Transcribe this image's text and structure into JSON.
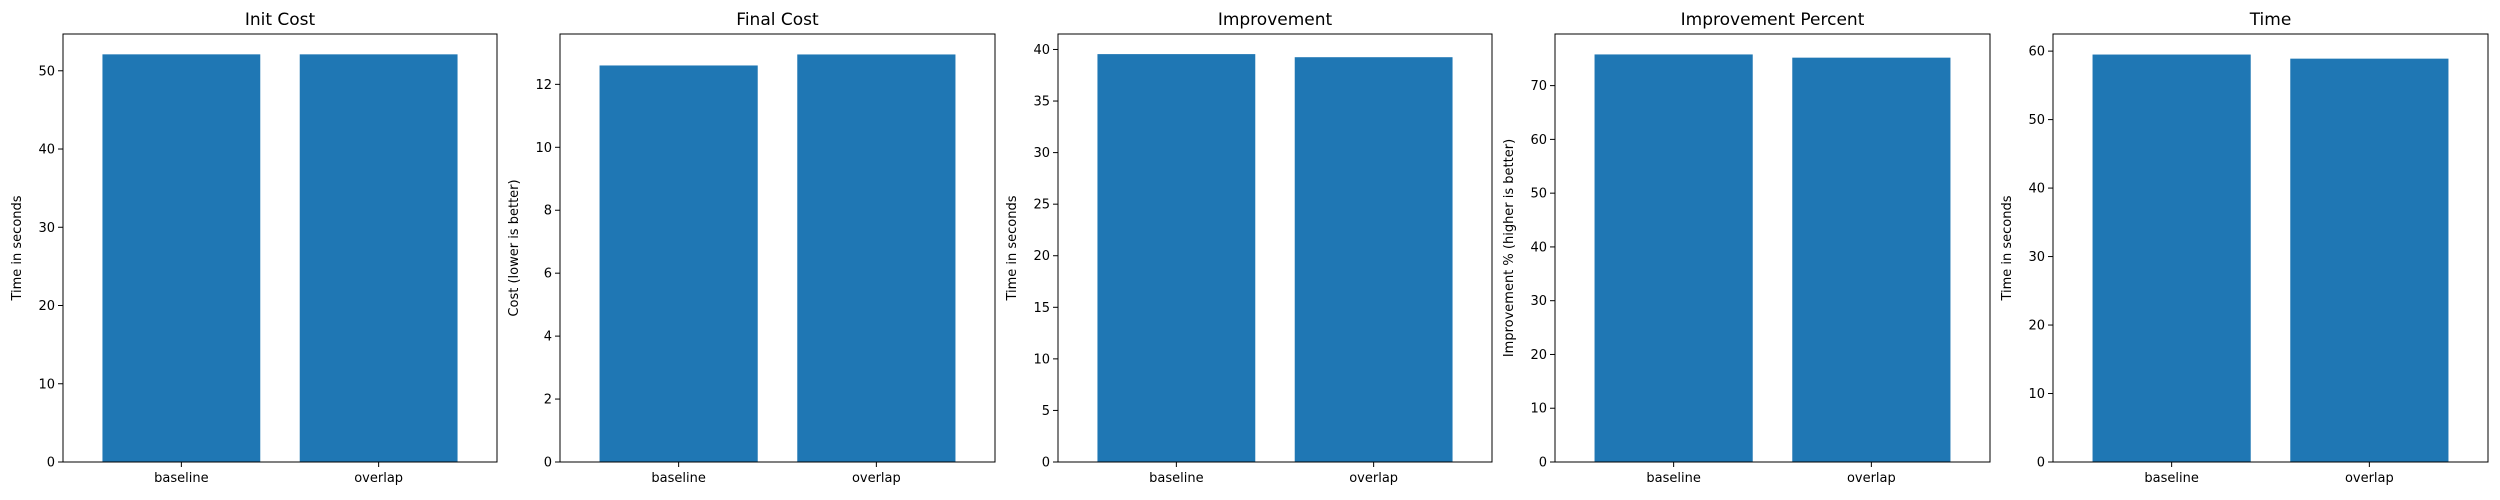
{
  "chart_data": [
    {
      "type": "bar",
      "title": "Init Cost",
      "ylabel": "Time in seconds",
      "xlabel": "",
      "categories": [
        "baseline",
        "overlap"
      ],
      "values": [
        52.1,
        52.1
      ],
      "ylim": [
        0,
        54.7
      ],
      "yticks": [
        0,
        10,
        20,
        30,
        40,
        50
      ],
      "grid": false,
      "color": "#1f77b4"
    },
    {
      "type": "bar",
      "title": "Final Cost",
      "ylabel": "Cost (lower is better)",
      "xlabel": "",
      "categories": [
        "baseline",
        "overlap"
      ],
      "values": [
        12.6,
        12.95
      ],
      "ylim": [
        0,
        13.6
      ],
      "yticks": [
        0,
        2,
        4,
        6,
        8,
        10,
        12
      ],
      "grid": false,
      "color": "#1f77b4"
    },
    {
      "type": "bar",
      "title": "Improvement",
      "ylabel": "Time in seconds",
      "xlabel": "",
      "categories": [
        "baseline",
        "overlap"
      ],
      "values": [
        39.55,
        39.25
      ],
      "ylim": [
        0,
        41.5
      ],
      "yticks": [
        0,
        5,
        10,
        15,
        20,
        25,
        30,
        35,
        40
      ],
      "grid": false,
      "color": "#1f77b4"
    },
    {
      "type": "bar",
      "title": "Improvement Percent",
      "ylabel": "Improvement % (higher is better)",
      "xlabel": "",
      "categories": [
        "baseline",
        "overlap"
      ],
      "values": [
        75.8,
        75.2
      ],
      "ylim": [
        0,
        79.6
      ],
      "yticks": [
        0,
        10,
        20,
        30,
        40,
        50,
        60,
        70
      ],
      "grid": false,
      "color": "#1f77b4"
    },
    {
      "type": "bar",
      "title": "Time",
      "ylabel": "Time in seconds",
      "xlabel": "",
      "categories": [
        "baseline",
        "overlap"
      ],
      "values": [
        59.5,
        58.9
      ],
      "ylim": [
        0,
        62.5
      ],
      "yticks": [
        0,
        10,
        20,
        30,
        40,
        50,
        60
      ],
      "grid": false,
      "color": "#1f77b4"
    }
  ]
}
